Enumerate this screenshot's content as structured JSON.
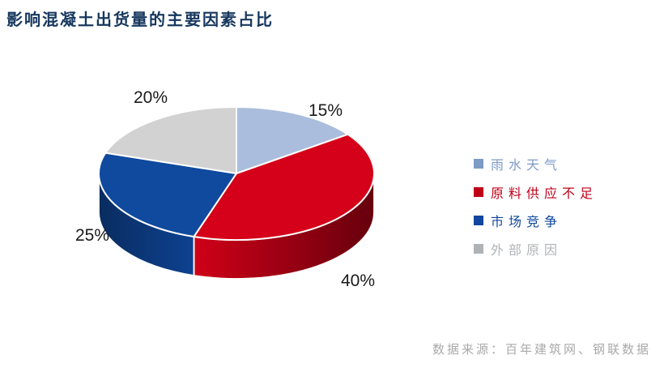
{
  "header": {
    "title": "影响混凝土出货量的主要因素占比"
  },
  "chart_data": {
    "type": "pie",
    "style": "3d",
    "title": "影响混凝土出货量的主要因素占比",
    "legend_position": "right",
    "start_angle_deg": 0,
    "direction": "clockwise",
    "slices": [
      {
        "label": "雨水天气",
        "value": 15,
        "pct_label": "15%",
        "color": "#aabddd"
      },
      {
        "label": "原料供应不足",
        "value": 40,
        "pct_label": "40%",
        "color": "#d50019",
        "side_from": "#d00018",
        "side_to": "#66000d"
      },
      {
        "label": "市场竞争",
        "value": 25,
        "pct_label": "25%",
        "color": "#0f4a9e",
        "side_from": "#0a2d60",
        "side_to": "#0d4190"
      },
      {
        "label": "外部原因",
        "value": 20,
        "pct_label": "20%",
        "color": "#d2d2d2"
      }
    ]
  },
  "legend": {
    "items": [
      {
        "label": "雨水天气",
        "color": "#7e9ac6"
      },
      {
        "label": "原料供应不足",
        "color": "#c00017"
      },
      {
        "label": "市场竞争",
        "color": "#11479e"
      },
      {
        "label": "外部原因",
        "color": "#b0b3b6"
      }
    ]
  },
  "footer": {
    "source": "数据来源：百年建筑网、钢联数据"
  }
}
